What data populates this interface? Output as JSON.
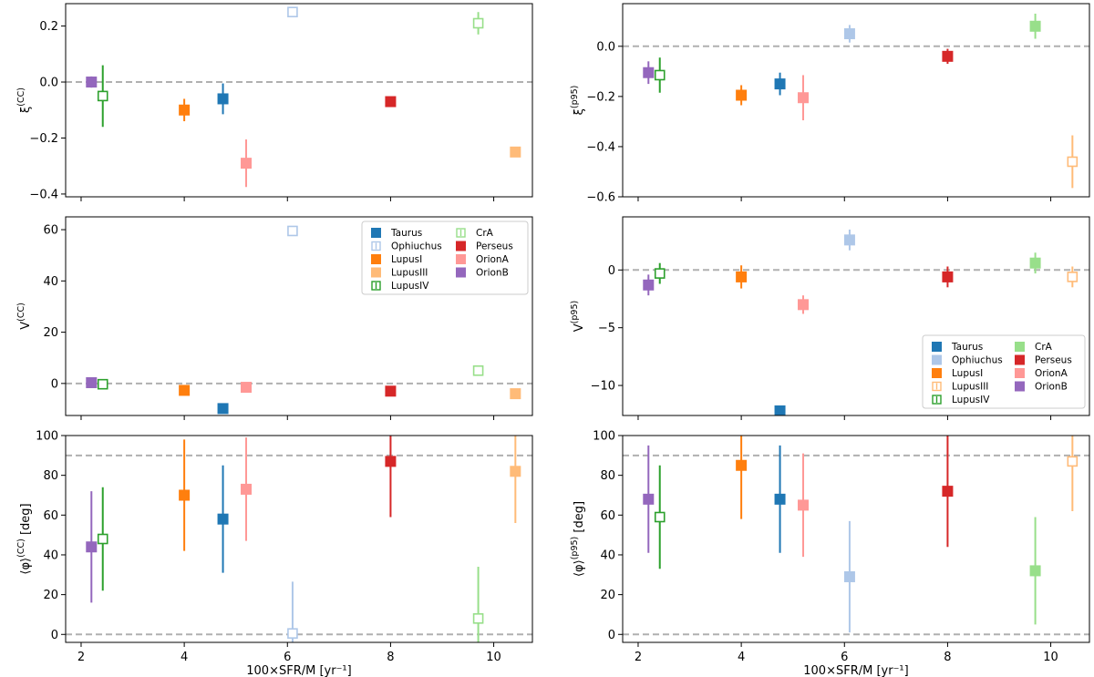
{
  "figure": {
    "xlabel": "100×SFR/M [yr⁻¹]"
  },
  "colors": {
    "Taurus": "#1f77b4",
    "Ophiuchus": "#aec7e8",
    "LupusI": "#ff7f0e",
    "LupusIII": "#ffbb78",
    "LupusIV": "#2ca02c",
    "CrA": "#98df8a",
    "Perseus": "#d62728",
    "OrionA": "#ff9896",
    "OrionB": "#9467bd",
    "refline": "#b0b0b0"
  },
  "chart_data": [
    {
      "id": "xi_cc",
      "type": "scatter",
      "ylabel": "ξ^(CC)",
      "xlim": [
        1.7,
        10.75
      ],
      "ylim": [
        -0.41,
        0.28
      ],
      "xticks": [
        2,
        4,
        6,
        8,
        10
      ],
      "xticklabels": [
        "2",
        "4",
        "6",
        "8",
        "10"
      ],
      "yticks": [
        -0.4,
        -0.2,
        0.0,
        0.2
      ],
      "yticklabels": [
        "−0.4",
        "−0.2",
        "0.0",
        "0.2"
      ],
      "reflines": [
        0
      ],
      "points": [
        {
          "name": "OrionB",
          "x": 2.2,
          "y": 0.0,
          "err": 0.02,
          "open": false
        },
        {
          "name": "LupusIV",
          "x": 2.42,
          "y": -0.05,
          "err": 0.11,
          "open": true
        },
        {
          "name": "LupusI",
          "x": 4.0,
          "y": -0.1,
          "err": 0.04,
          "open": false
        },
        {
          "name": "Taurus",
          "x": 4.75,
          "y": -0.06,
          "err": 0.055,
          "open": false
        },
        {
          "name": "OrionA",
          "x": 5.2,
          "y": -0.29,
          "err": 0.085,
          "open": false
        },
        {
          "name": "Ophiuchus",
          "x": 6.1,
          "y": 0.25,
          "err": 0.01,
          "open": true
        },
        {
          "name": "Perseus",
          "x": 8.0,
          "y": -0.07,
          "err": 0.01,
          "open": false
        },
        {
          "name": "CrA",
          "x": 9.7,
          "y": 0.21,
          "err": 0.04,
          "open": true
        },
        {
          "name": "LupusIII",
          "x": 10.42,
          "y": -0.25,
          "err": 0.005,
          "open": false
        }
      ]
    },
    {
      "id": "xi_p95",
      "type": "scatter",
      "ylabel": "ξ^(p95)",
      "xlim": [
        1.7,
        10.75
      ],
      "ylim": [
        -0.6,
        0.17
      ],
      "xticks": [
        2,
        4,
        6,
        8,
        10
      ],
      "xticklabels": [
        "2",
        "4",
        "6",
        "8",
        "10"
      ],
      "yticks": [
        -0.6,
        -0.4,
        -0.2,
        0.0
      ],
      "yticklabels": [
        "−0.6",
        "−0.4",
        "−0.2",
        "0.0"
      ],
      "reflines": [
        0
      ],
      "points": [
        {
          "name": "OrionB",
          "x": 2.2,
          "y": -0.105,
          "err": 0.045,
          "open": false
        },
        {
          "name": "LupusIV",
          "x": 2.42,
          "y": -0.115,
          "err": 0.07,
          "open": true
        },
        {
          "name": "LupusI",
          "x": 4.0,
          "y": -0.195,
          "err": 0.04,
          "open": false
        },
        {
          "name": "Taurus",
          "x": 4.75,
          "y": -0.15,
          "err": 0.045,
          "open": false
        },
        {
          "name": "OrionA",
          "x": 5.2,
          "y": -0.205,
          "err": 0.09,
          "open": false
        },
        {
          "name": "Ophiuchus",
          "x": 6.1,
          "y": 0.05,
          "err": 0.035,
          "open": false
        },
        {
          "name": "Perseus",
          "x": 8.0,
          "y": -0.04,
          "err": 0.03,
          "open": false
        },
        {
          "name": "CrA",
          "x": 9.7,
          "y": 0.08,
          "err": 0.05,
          "open": false
        },
        {
          "name": "LupusIII",
          "x": 10.42,
          "y": -0.46,
          "err": 0.105,
          "open": true
        }
      ]
    },
    {
      "id": "v_cc",
      "type": "scatter",
      "ylabel": "V^(CC)",
      "xlim": [
        1.7,
        10.75
      ],
      "ylim": [
        -12.5,
        65
      ],
      "xticks": [
        2,
        4,
        6,
        8,
        10
      ],
      "xticklabels": [
        "2",
        "4",
        "6",
        "8",
        "10"
      ],
      "yticks": [
        0,
        20,
        40,
        60
      ],
      "yticklabels": [
        "0",
        "20",
        "40",
        "60"
      ],
      "reflines": [
        0
      ],
      "legend": {
        "position": "upper right",
        "entries": [
          {
            "name": "Taurus",
            "label": "Taurus",
            "open": false
          },
          {
            "name": "CrA",
            "label": "CrA",
            "open": true
          },
          {
            "name": "Ophiuchus",
            "label": "Ophiuchus",
            "open": true
          },
          {
            "name": "Perseus",
            "label": "Perseus",
            "open": false
          },
          {
            "name": "LupusI",
            "label": "LupusI",
            "open": false
          },
          {
            "name": "OrionA",
            "label": "OrionA",
            "open": false
          },
          {
            "name": "LupusIII",
            "label": "LupusIII",
            "open": false
          },
          {
            "name": "OrionB",
            "label": "OrionB",
            "open": false
          },
          {
            "name": "LupusIV",
            "label": "LupusIV",
            "open": true
          }
        ]
      },
      "points": [
        {
          "name": "OrionB",
          "x": 2.2,
          "y": 0.3,
          "err": 0.4,
          "open": false
        },
        {
          "name": "LupusIV",
          "x": 2.42,
          "y": -0.3,
          "err": 0.4,
          "open": true
        },
        {
          "name": "LupusI",
          "x": 4.0,
          "y": -2.7,
          "err": 0.4,
          "open": false
        },
        {
          "name": "Taurus",
          "x": 4.75,
          "y": -9.8,
          "err": 0.3,
          "open": false
        },
        {
          "name": "OrionA",
          "x": 5.2,
          "y": -1.5,
          "err": 0.3,
          "open": false
        },
        {
          "name": "Ophiuchus",
          "x": 6.1,
          "y": 59.5,
          "err": 0.3,
          "open": true
        },
        {
          "name": "Perseus",
          "x": 8.0,
          "y": -3.0,
          "err": 0.3,
          "open": false
        },
        {
          "name": "CrA",
          "x": 9.7,
          "y": 5.0,
          "err": 0.8,
          "open": true
        },
        {
          "name": "LupusIII",
          "x": 10.42,
          "y": -4.0,
          "err": 0.3,
          "open": false
        }
      ]
    },
    {
      "id": "v_p95",
      "type": "scatter",
      "ylabel": "V^(p95)",
      "xlim": [
        1.7,
        10.75
      ],
      "ylim": [
        -12.6,
        4.6
      ],
      "xticks": [
        2,
        4,
        6,
        8,
        10
      ],
      "xticklabels": [
        "2",
        "4",
        "6",
        "8",
        "10"
      ],
      "yticks": [
        -10,
        -5,
        0
      ],
      "yticklabels": [
        "−10",
        "−5",
        "0"
      ],
      "reflines": [
        0
      ],
      "legend": {
        "position": "lower right",
        "entries": [
          {
            "name": "Taurus",
            "label": "Taurus",
            "open": false
          },
          {
            "name": "CrA",
            "label": "CrA",
            "open": false
          },
          {
            "name": "Ophiuchus",
            "label": "Ophiuchus",
            "open": false
          },
          {
            "name": "Perseus",
            "label": "Perseus",
            "open": false
          },
          {
            "name": "LupusI",
            "label": "LupusI",
            "open": false
          },
          {
            "name": "OrionA",
            "label": "OrionA",
            "open": false
          },
          {
            "name": "LupusIII",
            "label": "LupusIII",
            "open": true
          },
          {
            "name": "OrionB",
            "label": "OrionB",
            "open": false
          },
          {
            "name": "LupusIV",
            "label": "LupusIV",
            "open": true
          }
        ]
      },
      "points": [
        {
          "name": "OrionB",
          "x": 2.2,
          "y": -1.3,
          "err": 0.9,
          "open": false
        },
        {
          "name": "LupusIV",
          "x": 2.42,
          "y": -0.3,
          "err": 0.9,
          "open": true
        },
        {
          "name": "LupusI",
          "x": 4.0,
          "y": -0.6,
          "err": 1.0,
          "open": false
        },
        {
          "name": "Taurus",
          "x": 4.75,
          "y": -12.2,
          "err": 0.2,
          "open": false
        },
        {
          "name": "OrionA",
          "x": 5.2,
          "y": -3.0,
          "err": 0.8,
          "open": false
        },
        {
          "name": "Ophiuchus",
          "x": 6.1,
          "y": 2.6,
          "err": 0.9,
          "open": false
        },
        {
          "name": "Perseus",
          "x": 8.0,
          "y": -0.6,
          "err": 0.9,
          "open": false
        },
        {
          "name": "CrA",
          "x": 9.7,
          "y": 0.6,
          "err": 0.9,
          "open": false
        },
        {
          "name": "LupusIII",
          "x": 10.42,
          "y": -0.6,
          "err": 0.9,
          "open": true
        }
      ]
    },
    {
      "id": "phi_cc",
      "type": "scatter",
      "ylabel": "⟨φ⟩^(CC) [deg]",
      "xlim": [
        1.7,
        10.75
      ],
      "ylim": [
        -4,
        100
      ],
      "xticks": [
        2,
        4,
        6,
        8,
        10
      ],
      "xticklabels": [
        "2",
        "4",
        "6",
        "8",
        "10"
      ],
      "yticks": [
        0,
        20,
        40,
        60,
        80,
        100
      ],
      "yticklabels": [
        "0",
        "20",
        "40",
        "60",
        "80",
        "100"
      ],
      "xlabel": "100×SFR/M [yr⁻¹]",
      "reflines": [
        0,
        90
      ],
      "points": [
        {
          "name": "OrionB",
          "x": 2.2,
          "y": 44,
          "err": 28,
          "open": false
        },
        {
          "name": "LupusIV",
          "x": 2.42,
          "y": 48,
          "err": 26,
          "open": true
        },
        {
          "name": "LupusI",
          "x": 4.0,
          "y": 70,
          "err": 28,
          "open": false
        },
        {
          "name": "Taurus",
          "x": 4.75,
          "y": 58,
          "err": 27,
          "open": false
        },
        {
          "name": "OrionA",
          "x": 5.2,
          "y": 73,
          "err": 26,
          "open": false
        },
        {
          "name": "Ophiuchus",
          "x": 6.1,
          "y": 0.5,
          "err": 26,
          "open": true
        },
        {
          "name": "Perseus",
          "x": 8.0,
          "y": 87,
          "err": 28,
          "open": false
        },
        {
          "name": "CrA",
          "x": 9.7,
          "y": 8,
          "err": 26,
          "open": true
        },
        {
          "name": "LupusIII",
          "x": 10.42,
          "y": 82,
          "err": 26,
          "open": false
        }
      ]
    },
    {
      "id": "phi_p95",
      "type": "scatter",
      "ylabel": "⟨φ⟩^(p95) [deg]",
      "xlim": [
        1.7,
        10.75
      ],
      "ylim": [
        -4,
        100
      ],
      "xticks": [
        2,
        4,
        6,
        8,
        10
      ],
      "xticklabels": [
        "2",
        "4",
        "6",
        "8",
        "10"
      ],
      "yticks": [
        0,
        20,
        40,
        60,
        80,
        100
      ],
      "yticklabels": [
        "0",
        "20",
        "40",
        "60",
        "80",
        "100"
      ],
      "xlabel": "100×SFR/M [yr⁻¹]",
      "reflines": [
        0,
        90
      ],
      "points": [
        {
          "name": "OrionB",
          "x": 2.2,
          "y": 68,
          "err": 27,
          "open": false
        },
        {
          "name": "LupusIV",
          "x": 2.42,
          "y": 59,
          "err": 26,
          "open": true
        },
        {
          "name": "LupusI",
          "x": 4.0,
          "y": 85,
          "err": 27,
          "open": false
        },
        {
          "name": "Taurus",
          "x": 4.75,
          "y": 68,
          "err": 27,
          "open": false
        },
        {
          "name": "OrionA",
          "x": 5.2,
          "y": 65,
          "err": 26,
          "open": false
        },
        {
          "name": "Ophiuchus",
          "x": 6.1,
          "y": 29,
          "err": 28,
          "open": false
        },
        {
          "name": "Perseus",
          "x": 8.0,
          "y": 72,
          "err": 28,
          "open": false
        },
        {
          "name": "CrA",
          "x": 9.7,
          "y": 32,
          "err": 27,
          "open": false
        },
        {
          "name": "LupusIII",
          "x": 10.42,
          "y": 87,
          "err": 25,
          "open": true
        }
      ]
    }
  ]
}
